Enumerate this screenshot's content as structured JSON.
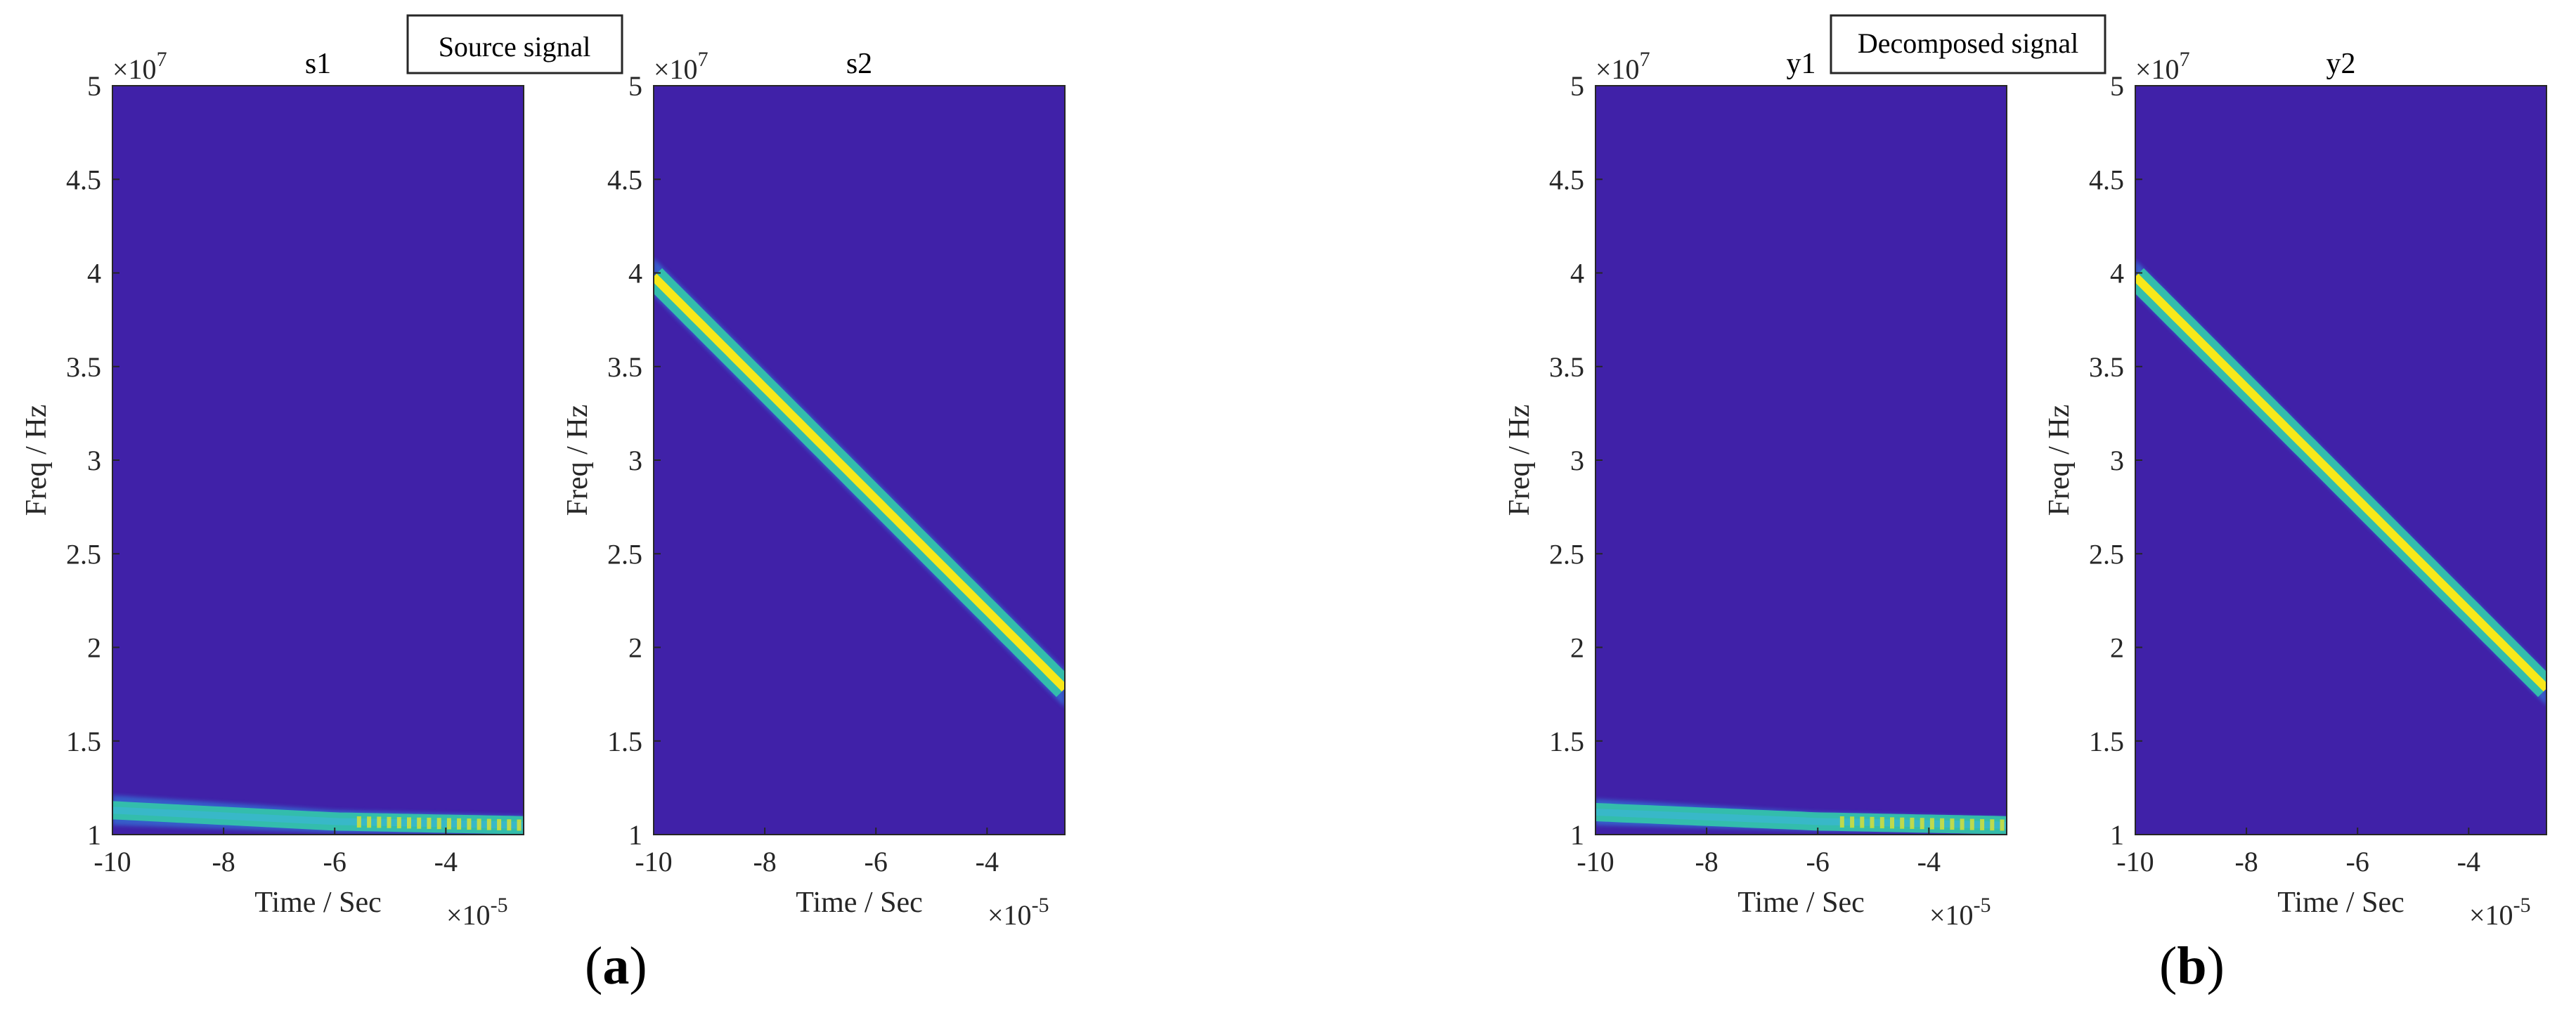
{
  "figure": {
    "annotations": [
      {
        "group": "a",
        "text": "Source signal"
      },
      {
        "group": "b",
        "text": "Decomposed signal"
      }
    ],
    "panel_labels": [
      {
        "open": "(",
        "letter": "a",
        "close": ")"
      },
      {
        "open": "(",
        "letter": "b",
        "close": ")"
      }
    ]
  },
  "colors": {
    "background": "#4021a8",
    "ridge_edge": "#2f8fe6",
    "ridge_mid": "#33c8a8",
    "ridge_core": "#f7e81a",
    "axis": "#262626"
  },
  "chart_data": [
    {
      "type": "heatmap",
      "title": "s1",
      "xlabel": "Time / Sec",
      "ylabel": "Freq / Hz",
      "x_exponent_label": "×10",
      "x_exponent_power": "-5",
      "y_exponent_label": "×10",
      "y_exponent_power": "7",
      "xlim": [
        -10,
        -2.6
      ],
      "ylim": [
        1,
        5
      ],
      "xticks": [
        "-10",
        "-8",
        "-6",
        "-4"
      ],
      "yticks": [
        "1",
        "1.5",
        "2",
        "2.5",
        "3",
        "3.5",
        "4",
        "4.5",
        "5"
      ],
      "ridge": {
        "kind": "low",
        "x": [
          -10,
          -6,
          -2.6
        ],
        "y_center": [
          1.13,
          1.07,
          1.05
        ],
        "y_halfwidth": [
          0.08,
          0.06,
          0.05
        ]
      }
    },
    {
      "type": "heatmap",
      "title": "s2",
      "xlabel": "Time / Sec",
      "ylabel": "Freq / Hz",
      "x_exponent_label": "×10",
      "x_exponent_power": "-5",
      "y_exponent_label": "×10",
      "y_exponent_power": "7",
      "xlim": [
        -10,
        -2.6
      ],
      "ylim": [
        1,
        5
      ],
      "xticks": [
        "-10",
        "-8",
        "-6",
        "-4"
      ],
      "yticks": [
        "1",
        "1.5",
        "2",
        "2.5",
        "3",
        "3.5",
        "4",
        "4.5",
        "5"
      ],
      "ridge": {
        "kind": "chirp",
        "x": [
          -10,
          -2.6
        ],
        "y_center": [
          3.98,
          1.78
        ],
        "y_halfwidth": [
          0.1,
          0.1
        ]
      }
    },
    {
      "type": "heatmap",
      "title": "y1",
      "xlabel": "Time / Sec",
      "ylabel": "Freq / Hz",
      "x_exponent_label": "×10",
      "x_exponent_power": "-5",
      "y_exponent_label": "×10",
      "y_exponent_power": "7",
      "xlim": [
        -10,
        -2.6
      ],
      "ylim": [
        1,
        5
      ],
      "xticks": [
        "-10",
        "-8",
        "-6",
        "-4"
      ],
      "yticks": [
        "1",
        "1.5",
        "2",
        "2.5",
        "3",
        "3.5",
        "4",
        "4.5",
        "5"
      ],
      "ridge": {
        "kind": "low",
        "x": [
          -10,
          -6,
          -2.6
        ],
        "y_center": [
          1.12,
          1.07,
          1.05
        ],
        "y_halfwidth": [
          0.07,
          0.05,
          0.04
        ]
      }
    },
    {
      "type": "heatmap",
      "title": "y2",
      "xlabel": "Time / Sec",
      "ylabel": "Freq / Hz",
      "x_exponent_label": "×10",
      "x_exponent_power": "-5",
      "y_exponent_label": "×10",
      "y_exponent_power": "7",
      "xlim": [
        -10,
        -2.6
      ],
      "ylim": [
        1,
        5
      ],
      "xticks": [
        "-10",
        "-8",
        "-6",
        "-4"
      ],
      "yticks": [
        "1",
        "1.5",
        "2",
        "2.5",
        "3",
        "3.5",
        "4",
        "4.5",
        "5"
      ],
      "ridge": {
        "kind": "chirp",
        "x": [
          -10,
          -2.6
        ],
        "y_center": [
          3.98,
          1.78
        ],
        "y_halfwidth": [
          0.09,
          0.09
        ]
      }
    }
  ]
}
